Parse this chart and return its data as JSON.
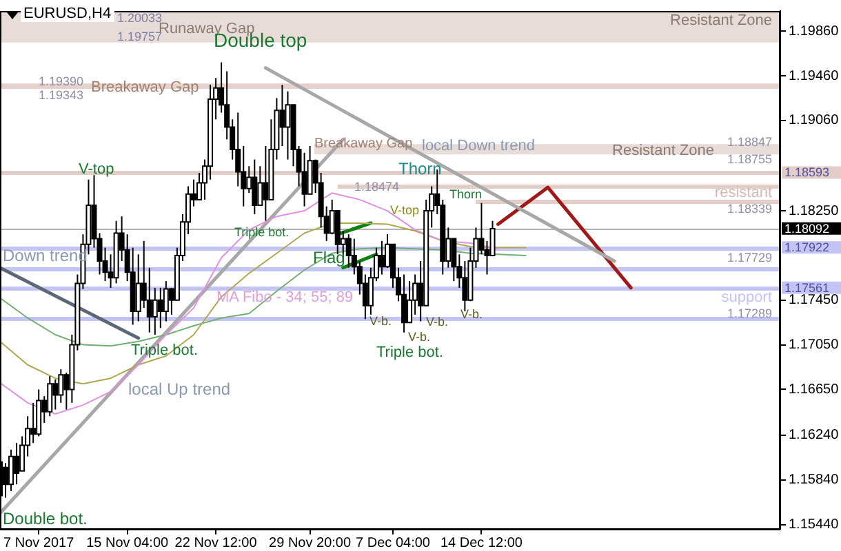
{
  "chart_data": {
    "type": "candlestick",
    "title": "EURUSD,H4",
    "categories": [
      null,
      null,
      null,
      null,
      null,
      null,
      null,
      "7 Nov 2017",
      null,
      null,
      null,
      null,
      null,
      null,
      null,
      null,
      null,
      null,
      null,
      null,
      null,
      null,
      null,
      "15 Nov 04:00",
      null,
      null,
      null,
      null,
      null,
      null,
      null,
      null,
      null,
      null,
      null,
      null,
      null,
      null,
      null,
      "22 Nov 12:00",
      null,
      null,
      null,
      null,
      null,
      null,
      null,
      null,
      null,
      null,
      null,
      null,
      null,
      null,
      null,
      null,
      "29 Nov 20:00",
      null,
      null,
      null,
      null,
      null,
      null,
      null,
      null,
      null,
      null,
      null,
      null,
      null,
      null,
      "7 Dec 04:00",
      null,
      null,
      null,
      null,
      null,
      null,
      null,
      null,
      null,
      null,
      null,
      null,
      null,
      null,
      null,
      "14 Dec 12:00",
      null,
      null,
      null,
      null,
      null,
      null,
      null,
      null,
      null,
      null,
      null,
      null,
      null,
      null,
      null,
      null,
      null,
      null,
      null,
      null,
      null,
      null,
      null,
      null,
      null,
      null,
      null,
      null,
      null,
      null,
      null,
      null,
      null,
      null,
      null,
      null,
      null,
      null,
      null,
      null,
      null,
      null,
      null,
      null,
      null,
      null,
      null,
      null,
      null,
      null,
      null,
      null,
      null,
      null
    ],
    "ohlc": [
      [
        1.157,
        1.1617,
        1.1554,
        1.16
      ],
      [
        1.1595,
        1.1599,
        1.1568,
        1.158
      ],
      [
        1.158,
        1.1611,
        1.1574,
        1.1605
      ],
      [
        1.1605,
        1.1617,
        1.158,
        1.159
      ],
      [
        1.1592,
        1.1623,
        1.1592,
        1.1615
      ],
      [
        1.1615,
        1.1641,
        1.1605,
        1.163
      ],
      [
        1.163,
        1.1653,
        1.1617,
        1.1625
      ],
      [
        1.1625,
        1.1665,
        1.1623,
        1.1655
      ],
      [
        1.1655,
        1.1659,
        1.1635,
        1.1645
      ],
      [
        1.1645,
        1.1677,
        1.1641,
        1.167
      ],
      [
        1.167,
        1.1674,
        1.1647,
        1.166
      ],
      [
        1.166,
        1.1683,
        1.1653,
        1.1678
      ],
      [
        1.1678,
        1.168,
        1.1647,
        1.1665
      ],
      [
        1.1665,
        1.1714,
        1.1653,
        1.1705
      ],
      [
        1.1705,
        1.1768,
        1.17,
        1.176
      ],
      [
        1.176,
        1.1804,
        1.1755,
        1.1795
      ],
      [
        1.1795,
        1.1853,
        1.1786,
        1.183
      ],
      [
        1.183,
        1.1857,
        1.1792,
        1.18
      ],
      [
        1.18,
        1.1805,
        1.1768,
        1.178
      ],
      [
        1.178,
        1.1792,
        1.1762,
        1.177
      ],
      [
        1.177,
        1.1786,
        1.1756,
        1.1765
      ],
      [
        1.1765,
        1.1816,
        1.176,
        1.1805
      ],
      [
        1.1805,
        1.182,
        1.178,
        1.179
      ],
      [
        1.179,
        1.1804,
        1.1762,
        1.177
      ],
      [
        1.177,
        1.1792,
        1.1723,
        1.1735
      ],
      [
        1.1735,
        1.1786,
        1.1726,
        1.176
      ],
      [
        1.176,
        1.1798,
        1.1738,
        1.1745
      ],
      [
        1.1745,
        1.1774,
        1.1716,
        1.173
      ],
      [
        1.173,
        1.1756,
        1.1714,
        1.1745
      ],
      [
        1.1745,
        1.1756,
        1.172,
        1.1735
      ],
      [
        1.1735,
        1.1762,
        1.1726,
        1.1755
      ],
      [
        1.1755,
        1.1756,
        1.1732,
        1.1745
      ],
      [
        1.1745,
        1.1792,
        1.1745,
        1.1785
      ],
      [
        1.1785,
        1.1822,
        1.178,
        1.1815
      ],
      [
        1.1815,
        1.1847,
        1.1804,
        1.184
      ],
      [
        1.184,
        1.1853,
        1.1829,
        1.1835
      ],
      [
        1.1835,
        1.1859,
        1.1835,
        1.185
      ],
      [
        1.185,
        1.1871,
        1.1835,
        1.1865
      ],
      [
        1.1865,
        1.1938,
        1.1853,
        1.1925
      ],
      [
        1.1925,
        1.1944,
        1.1907,
        1.1935
      ],
      [
        1.1935,
        1.1958,
        1.1913,
        1.192
      ],
      [
        1.192,
        1.195,
        1.1889,
        1.19
      ],
      [
        1.19,
        1.1907,
        1.1871,
        1.188
      ],
      [
        1.188,
        1.1913,
        1.1847,
        1.186
      ],
      [
        1.186,
        1.1883,
        1.1829,
        1.1845
      ],
      [
        1.1845,
        1.1865,
        1.1841,
        1.1855
      ],
      [
        1.1855,
        1.1871,
        1.1822,
        1.183
      ],
      [
        1.183,
        1.1865,
        1.183,
        1.185
      ],
      [
        1.185,
        1.1883,
        1.1816,
        1.1835
      ],
      [
        1.1835,
        1.1907,
        1.1835,
        1.188
      ],
      [
        1.188,
        1.1926,
        1.1871,
        1.1915
      ],
      [
        1.1915,
        1.1938,
        1.1883,
        1.19
      ],
      [
        1.19,
        1.1932,
        1.1871,
        1.192
      ],
      [
        1.192,
        1.192,
        1.1865,
        1.188
      ],
      [
        1.188,
        1.1883,
        1.1847,
        1.186
      ],
      [
        1.186,
        1.1877,
        1.1829,
        1.184
      ],
      [
        1.184,
        1.1883,
        1.184,
        1.187
      ],
      [
        1.187,
        1.1871,
        1.1841,
        1.185
      ],
      [
        1.185,
        1.1859,
        1.181,
        1.182
      ],
      [
        1.182,
        1.1829,
        1.1798,
        1.1805
      ],
      [
        1.1805,
        1.1835,
        1.1804,
        1.1825
      ],
      [
        1.1825,
        1.1825,
        1.1786,
        1.1795
      ],
      [
        1.1795,
        1.1807,
        1.178,
        1.18
      ],
      [
        1.18,
        1.1804,
        1.1774,
        1.1785
      ],
      [
        1.1785,
        1.18,
        1.1768,
        1.1775
      ],
      [
        1.1775,
        1.178,
        1.175,
        1.176
      ],
      [
        1.176,
        1.1768,
        1.1728,
        1.174
      ],
      [
        1.174,
        1.1774,
        1.1732,
        1.1765
      ],
      [
        1.1765,
        1.1792,
        1.1762,
        1.1785
      ],
      [
        1.1785,
        1.1798,
        1.1768,
        1.1775
      ],
      [
        1.1775,
        1.1804,
        1.1774,
        1.1795
      ],
      [
        1.1795,
        1.1795,
        1.1756,
        1.1765
      ],
      [
        1.1765,
        1.1774,
        1.1744,
        1.175
      ],
      [
        1.175,
        1.1768,
        1.1716,
        1.1725
      ],
      [
        1.1725,
        1.1762,
        1.1725,
        1.1745
      ],
      [
        1.1745,
        1.1768,
        1.1732,
        1.176
      ],
      [
        1.176,
        1.178,
        1.1726,
        1.174
      ],
      [
        1.174,
        1.1835,
        1.174,
        1.1825
      ],
      [
        1.1825,
        1.1847,
        1.181,
        1.184
      ],
      [
        1.184,
        1.1862,
        1.1822,
        1.183
      ],
      [
        1.183,
        1.1835,
        1.1768,
        1.178
      ],
      [
        1.178,
        1.181,
        1.1774,
        1.18
      ],
      [
        1.18,
        1.18,
        1.1762,
        1.1775
      ],
      [
        1.1775,
        1.1786,
        1.1756,
        1.1765
      ],
      [
        1.1765,
        1.178,
        1.1735,
        1.1745
      ],
      [
        1.1745,
        1.1792,
        1.1744,
        1.178
      ],
      [
        1.178,
        1.181,
        1.1774,
        1.18
      ],
      [
        1.18,
        1.1832,
        1.1786,
        1.179
      ],
      [
        1.179,
        1.1798,
        1.1768,
        1.1785
      ],
      [
        1.1785,
        1.1816,
        1.1785,
        1.1809
      ],
      null,
      null,
      null,
      null,
      null,
      null,
      null,
      null,
      null,
      null,
      null,
      null,
      null,
      null,
      null,
      null,
      null,
      null,
      null,
      null,
      null,
      null,
      null,
      null,
      null,
      null,
      null,
      null,
      null,
      null,
      null,
      null,
      null,
      null,
      null,
      null,
      null,
      null,
      null,
      null,
      null,
      null,
      null,
      null,
      null,
      null,
      null,
      null,
      null,
      null,
      null,
      null
    ],
    "series": [
      {
        "type": "line",
        "color": "#e090e0",
        "values": [
          1.1671,
          null,
          null,
          null,
          null,
          1.1653,
          null,
          null,
          null,
          null,
          1.1643,
          null,
          null,
          null,
          null,
          1.1651,
          null,
          null,
          null,
          null,
          1.1663,
          null,
          null,
          null,
          null,
          1.1687,
          null,
          null,
          null,
          null,
          1.1714,
          null,
          null,
          null,
          null,
          1.1738,
          null,
          null,
          null,
          null,
          1.1783,
          null,
          null,
          null,
          null,
          1.1808,
          null,
          null,
          null,
          null,
          1.182,
          null,
          null,
          null,
          null,
          1.1825,
          null,
          null,
          null,
          null,
          1.1841,
          null,
          null,
          null,
          null,
          1.1835,
          null,
          null,
          null,
          null,
          1.1825,
          null,
          null,
          null,
          null,
          1.1808,
          null,
          null,
          null,
          null,
          1.1798,
          null,
          null,
          null,
          null,
          1.1796,
          null,
          null,
          null,
          null,
          1.1791,
          null,
          null,
          null,
          null,
          null,
          null,
          null,
          null,
          null,
          null,
          null,
          null,
          null,
          null,
          null,
          null,
          null,
          null,
          null,
          null,
          null,
          null,
          null,
          null,
          null,
          null,
          null,
          null,
          null,
          null,
          null,
          null,
          null,
          null,
          null,
          null,
          null,
          null,
          null,
          null,
          null,
          null,
          null,
          null,
          null,
          null,
          null,
          null,
          null,
          null,
          null
        ]
      },
      {
        "type": "line",
        "color": "#b0a850",
        "values": [
          1.1708,
          null,
          null,
          null,
          null,
          1.1687,
          null,
          null,
          null,
          null,
          1.1675,
          null,
          null,
          null,
          null,
          1.167,
          null,
          null,
          null,
          null,
          1.1675,
          null,
          null,
          null,
          null,
          1.1687,
          null,
          null,
          null,
          null,
          1.1695,
          null,
          null,
          null,
          null,
          1.1714,
          null,
          null,
          null,
          null,
          1.1748,
          null,
          null,
          null,
          null,
          1.1769,
          null,
          null,
          null,
          null,
          1.1787,
          null,
          null,
          null,
          null,
          1.1805,
          null,
          null,
          null,
          null,
          1.1814,
          null,
          null,
          null,
          null,
          1.1814,
          null,
          null,
          null,
          null,
          1.1813,
          null,
          null,
          null,
          null,
          1.1807,
          null,
          null,
          null,
          null,
          1.1798,
          null,
          null,
          null,
          null,
          1.1793,
          null,
          null,
          null,
          null,
          1.1792,
          null,
          null,
          null,
          null,
          1.1792,
          null,
          null,
          null,
          null,
          null,
          null,
          null,
          null,
          null,
          null,
          null,
          null,
          null,
          null,
          null,
          null,
          null,
          null,
          null,
          null,
          null,
          null,
          null,
          null,
          null,
          null,
          null,
          null,
          null,
          null,
          null,
          null,
          null,
          null,
          null,
          null,
          null,
          null,
          null,
          null,
          null,
          null,
          null,
          null,
          null,
          null
        ]
      },
      {
        "type": "line",
        "color": "#70b070",
        "values": [
          1.1747,
          null,
          null,
          null,
          null,
          1.1729,
          null,
          null,
          null,
          null,
          1.1714,
          null,
          null,
          null,
          null,
          1.1705,
          null,
          null,
          null,
          null,
          1.1704,
          null,
          null,
          null,
          null,
          1.1708,
          null,
          null,
          null,
          null,
          1.1714,
          null,
          null,
          null,
          null,
          1.1722,
          null,
          null,
          null,
          null,
          1.1729,
          null,
          null,
          null,
          null,
          1.1733,
          null,
          null,
          null,
          null,
          1.1753,
          null,
          null,
          null,
          null,
          1.1772,
          null,
          null,
          null,
          null,
          1.1787,
          null,
          null,
          null,
          null,
          1.1791,
          null,
          null,
          null,
          null,
          1.1792,
          null,
          null,
          null,
          null,
          1.1791,
          null,
          null,
          null,
          null,
          1.179,
          null,
          null,
          null,
          null,
          1.1787,
          null,
          null,
          null,
          null,
          1.1786,
          null,
          null,
          null,
          null,
          1.1785,
          null,
          null,
          null,
          null,
          null,
          null,
          null,
          null,
          null,
          null,
          null,
          null,
          null,
          null,
          null,
          null,
          null,
          null,
          null,
          null,
          null,
          null,
          null,
          null,
          null,
          null,
          null,
          null,
          null,
          null,
          null,
          null,
          null,
          null,
          null,
          null,
          null,
          null,
          null,
          null,
          null,
          null,
          null,
          null,
          null,
          null
        ]
      },
      {
        "type": "line",
        "color": "#5c6878",
        "values": [
          1.1774,
          null,
          null,
          null,
          null,
          null,
          null,
          null,
          null,
          null,
          null,
          null,
          null,
          null,
          null,
          null,
          null,
          null,
          null,
          null,
          null,
          null,
          null,
          null,
          null,
          1.1711,
          null,
          null,
          null,
          null,
          null,
          null,
          null,
          null,
          null,
          null,
          null,
          null,
          null,
          null,
          null,
          null,
          null,
          null,
          null,
          null,
          null,
          null,
          null,
          null,
          null,
          null,
          null,
          null,
          null,
          null,
          null,
          null,
          null,
          null,
          null,
          null,
          null,
          null,
          null,
          null,
          null,
          null,
          null,
          null,
          null,
          null,
          null,
          null,
          null,
          null,
          null,
          null,
          null,
          null,
          null,
          null,
          null,
          null,
          null,
          null,
          null,
          null,
          null,
          null,
          null,
          null,
          null,
          null,
          null,
          null,
          null,
          null,
          null,
          null,
          null,
          null,
          null,
          null,
          null,
          null,
          null,
          null,
          null,
          null,
          null,
          null,
          null,
          null,
          null,
          null,
          null,
          null,
          null,
          null,
          null,
          null,
          null,
          null,
          null,
          null,
          null,
          null,
          null,
          null,
          null,
          null,
          null,
          null,
          null,
          null,
          null,
          null,
          null,
          null,
          null,
          null
        ]
      },
      {
        "type": "line",
        "color": "#a8a8a8",
        "values": [
          1.1554,
          null,
          null,
          null,
          null,
          null,
          null,
          null,
          null,
          null,
          null,
          null,
          null,
          null,
          null,
          null,
          null,
          null,
          null,
          null,
          null,
          null,
          null,
          null,
          null,
          null,
          null,
          null,
          null,
          null,
          null,
          null,
          null,
          null,
          null,
          null,
          null,
          null,
          null,
          null,
          null,
          null,
          null,
          null,
          null,
          null,
          null,
          null,
          null,
          null,
          null,
          null,
          null,
          null,
          null,
          null,
          null,
          null,
          null,
          null,
          null,
          null,
          1.1889,
          null,
          null,
          null,
          null,
          null,
          null,
          null,
          null,
          null,
          null,
          null,
          null,
          null,
          null,
          null,
          null,
          null,
          null,
          null,
          null,
          null,
          null,
          null,
          null,
          null,
          null,
          null,
          null,
          null,
          null,
          null,
          null,
          null,
          null,
          null,
          null,
          null,
          null,
          null,
          null,
          null,
          null,
          null,
          null,
          null,
          null,
          null,
          null,
          null,
          null,
          null,
          null,
          null,
          null,
          null,
          null,
          null,
          null,
          null,
          null,
          null,
          null,
          null,
          null,
          null,
          null,
          null,
          null,
          null,
          null,
          null,
          null,
          null,
          null,
          null,
          null,
          null,
          null,
          null
        ]
      },
      {
        "type": "line",
        "color": "#a8a8a8",
        "values": [
          null,
          null,
          null,
          null,
          null,
          null,
          null,
          null,
          null,
          null,
          null,
          null,
          null,
          null,
          null,
          null,
          null,
          null,
          null,
          null,
          null,
          null,
          null,
          null,
          null,
          null,
          null,
          null,
          null,
          null,
          null,
          null,
          null,
          null,
          null,
          null,
          null,
          null,
          null,
          null,
          null,
          null,
          null,
          null,
          null,
          null,
          null,
          null,
          1.1953,
          null,
          null,
          null,
          null,
          null,
          null,
          null,
          null,
          null,
          null,
          null,
          null,
          null,
          null,
          null,
          null,
          null,
          null,
          null,
          null,
          null,
          null,
          null,
          null,
          null,
          null,
          null,
          null,
          null,
          null,
          null,
          null,
          null,
          null,
          null,
          null,
          null,
          null,
          null,
          null,
          null,
          null,
          null,
          null,
          null,
          null,
          null,
          null,
          null,
          null,
          null,
          null,
          null,
          null,
          null,
          null,
          null,
          null,
          null,
          null,
          null,
          null,
          1.178,
          null,
          null,
          null,
          null,
          null,
          null,
          null,
          null,
          null,
          null,
          null,
          null,
          null,
          null,
          null,
          null,
          null,
          null,
          null,
          null,
          null,
          null,
          null,
          null,
          null,
          null,
          null,
          null,
          null,
          null
        ]
      },
      {
        "type": "line",
        "color": "#a01818",
        "values": [
          null,
          null,
          null,
          null,
          null,
          null,
          null,
          null,
          null,
          null,
          null,
          null,
          null,
          null,
          null,
          null,
          null,
          null,
          null,
          null,
          null,
          null,
          null,
          null,
          null,
          null,
          null,
          null,
          null,
          null,
          null,
          null,
          null,
          null,
          null,
          null,
          null,
          null,
          null,
          null,
          null,
          null,
          null,
          null,
          null,
          null,
          null,
          null,
          null,
          null,
          null,
          null,
          null,
          null,
          null,
          null,
          null,
          null,
          null,
          null,
          null,
          null,
          null,
          null,
          null,
          null,
          null,
          null,
          null,
          null,
          null,
          null,
          null,
          null,
          null,
          null,
          null,
          null,
          null,
          null,
          null,
          null,
          null,
          null,
          null,
          null,
          null,
          null,
          null,
          null,
          1.1813,
          null,
          null,
          null,
          null,
          null,
          null,
          null,
          null,
          1.1846,
          null,
          null,
          null,
          null,
          null,
          null,
          null,
          null,
          null,
          null,
          null,
          null,
          null,
          null,
          1.1756,
          null,
          null,
          null,
          null,
          null,
          null,
          null,
          null,
          null,
          null,
          null,
          null,
          null,
          null,
          null,
          null,
          null,
          null,
          null,
          null,
          null,
          null,
          null,
          null,
          null,
          null,
          null
        ]
      },
      {
        "type": "line",
        "color": "#108010",
        "values": [
          null,
          null,
          null,
          null,
          null,
          null,
          null,
          null,
          null,
          null,
          null,
          null,
          null,
          null,
          null,
          null,
          null,
          null,
          null,
          null,
          null,
          null,
          null,
          null,
          null,
          null,
          null,
          null,
          null,
          null,
          null,
          null,
          null,
          null,
          null,
          null,
          null,
          null,
          null,
          null,
          null,
          null,
          null,
          null,
          null,
          null,
          null,
          null,
          null,
          null,
          null,
          null,
          null,
          null,
          null,
          null,
          null,
          null,
          null,
          null,
          null,
          1.1804,
          null,
          null,
          null,
          null,
          null,
          1.1814,
          null,
          null,
          null,
          null,
          null,
          null,
          null,
          null,
          null,
          null,
          null,
          null,
          null,
          null,
          null,
          null,
          null,
          null,
          null,
          null,
          null,
          null,
          null,
          null,
          null,
          null,
          null,
          null,
          null,
          null,
          null,
          null,
          null,
          null,
          null,
          null,
          null,
          null,
          null,
          null,
          null,
          null,
          null,
          null,
          null,
          null,
          null,
          null,
          null,
          null,
          null,
          null,
          null,
          null,
          null,
          null,
          null,
          null,
          null,
          null,
          null,
          null,
          null,
          null,
          null,
          null,
          null,
          null,
          null,
          null,
          null,
          null,
          null,
          null
        ]
      },
      {
        "type": "line",
        "color": "#108010",
        "values": [
          null,
          null,
          null,
          null,
          null,
          null,
          null,
          null,
          null,
          null,
          null,
          null,
          null,
          null,
          null,
          null,
          null,
          null,
          null,
          null,
          null,
          null,
          null,
          null,
          null,
          null,
          null,
          null,
          null,
          null,
          null,
          null,
          null,
          null,
          null,
          null,
          null,
          null,
          null,
          null,
          null,
          null,
          null,
          null,
          null,
          null,
          null,
          null,
          null,
          null,
          null,
          null,
          null,
          null,
          null,
          null,
          null,
          null,
          null,
          null,
          null,
          null,
          1.1774,
          null,
          null,
          null,
          null,
          null,
          1.1786,
          null,
          null,
          null,
          null,
          null,
          null,
          null,
          null,
          null,
          null,
          null,
          null,
          null,
          null,
          null,
          null,
          null,
          null,
          null,
          null,
          null,
          null,
          null,
          null,
          null,
          null,
          null,
          null,
          null,
          null,
          null,
          null,
          null,
          null,
          null,
          null,
          null,
          null,
          null,
          null,
          null,
          null,
          null,
          null,
          null,
          null,
          null,
          null,
          null,
          null,
          null,
          null,
          null,
          null,
          null,
          null,
          null,
          null,
          null,
          null,
          null,
          null,
          null,
          null,
          null,
          null,
          null,
          null,
          null,
          null,
          null,
          null,
          null
        ]
      }
    ],
    "ylim": [
      1.154,
      1.2004
    ],
    "yticks": [
      {
        "value": 1.1986,
        "label": "1.19860"
      },
      {
        "value": 1.1946,
        "label": "1.19460"
      },
      {
        "value": 1.1906,
        "label": "1.19060"
      },
      {
        "value": 1.1825,
        "label": "1.18250"
      },
      {
        "value": 1.1745,
        "label": "1.17450"
      },
      {
        "value": 1.1705,
        "label": "1.17050"
      },
      {
        "value": 1.1665,
        "label": "1.16650"
      },
      {
        "value": 1.1624,
        "label": "1.16240"
      },
      {
        "value": 1.1584,
        "label": "1.15840"
      },
      {
        "value": 1.1544,
        "label": "1.15440"
      }
    ],
    "bands": [
      {
        "axis": "y",
        "from": 1.19757,
        "to": 1.20033,
        "label": "Runaway Gap",
        "color": "#e8dcd8"
      },
      {
        "axis": "y",
        "from": 1.19343,
        "to": 1.1939,
        "label": "Breakaway Gap",
        "color": "#e8d0cc"
      },
      {
        "axis": "y",
        "from": 1.18755,
        "to": 1.18847,
        "label": "Resistant Zone",
        "color": "#e8dcd8"
      }
    ],
    "ref_lines": [
      {
        "axis": "y",
        "value": 1.18593,
        "label": "1.18593",
        "color": "#e2cdc8"
      },
      {
        "axis": "y",
        "value": 1.18474,
        "color": "#e2cdc8"
      },
      {
        "axis": "y",
        "value": 1.18339,
        "color": "#e2cdc8"
      },
      {
        "axis": "y",
        "value": 1.18092,
        "label": "1.18092",
        "color": "#000000"
      },
      {
        "axis": "y",
        "value": 1.17922,
        "label": "1.17922",
        "color": "#c4c4f4"
      },
      {
        "axis": "y",
        "value": 1.17729,
        "color": "#c4c4f4"
      },
      {
        "axis": "y",
        "value": 1.17561,
        "label": "1.17561",
        "color": "#c4c4f4"
      },
      {
        "axis": "y",
        "value": 1.17289,
        "color": "#c4c4f4"
      }
    ],
    "annotations": [
      "Double top",
      {
        "text": "V-top",
        "y": 1.1862
      },
      {
        "text": "Triple bot.",
        "y": 1.1805
      },
      {
        "text": "Triple bot.",
        "y": 1.1711
      },
      "Triple bot.",
      {
        "text": "Down trend",
        "y": 1.1784
      },
      "local Up trend",
      {
        "text": "local Down trend",
        "y": 1.1883
      },
      "MA Fibo - 34; 55; 89",
      {
        "text": "Flag",
        "y": 1.1782
      },
      "V-top",
      {
        "text": "Thorn",
        "y": 1.1862
      },
      {
        "text": "Thorn",
        "y": 1.1839
      },
      {
        "text": "V-b.",
        "y": 1.1726
      },
      "V-b.",
      {
        "text": "V-b.",
        "y": 1.1725
      },
      {
        "text": "V-b.",
        "y": 1.1732
      },
      "Double bot.",
      {
        "text": "Breakaway Gap",
        "y": 1.1885
      },
      "Resistant Zone",
      {
        "text": "1.20033",
        "y": 1.20033
      },
      {
        "text": "1.19757",
        "y": 1.19757
      },
      {
        "text": "1.19390",
        "y": 1.1939
      },
      {
        "text": "1.19343",
        "y": 1.19343
      },
      {
        "text": "1.18847",
        "y": 1.18847
      },
      {
        "text": "1.18755",
        "y": 1.18755
      },
      {
        "text": "1.18474",
        "y": 1.18474
      },
      {
        "text": "resistant",
        "y": 1.18339
      },
      {
        "text": "1.18339",
        "y": 1.18339
      },
      {
        "text": "1.17729",
        "y": 1.17729
      },
      {
        "text": "support",
        "y": 1.17289
      },
      {
        "text": "1.17289",
        "y": 1.17289
      }
    ]
  }
}
